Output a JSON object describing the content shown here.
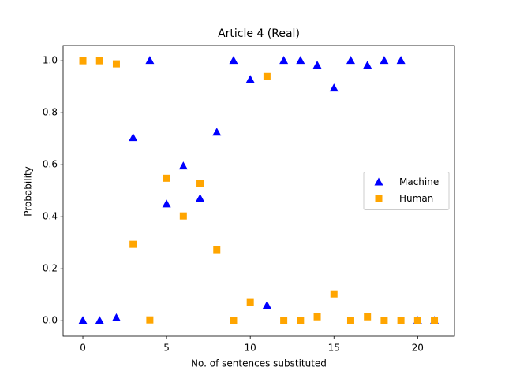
{
  "chart_data": {
    "type": "scatter",
    "title": "Article 4 (Real)",
    "xlabel": "No. of sentences substituted",
    "ylabel": "Probability",
    "x": [
      0,
      1,
      2,
      3,
      4,
      5,
      6,
      7,
      8,
      9,
      10,
      11,
      12,
      13,
      14,
      15,
      16,
      17,
      18,
      19,
      20,
      21
    ],
    "series": [
      {
        "name": "Machine",
        "color": "#0000ff",
        "marker": "triangle",
        "values": [
          0.0,
          0.0,
          0.01,
          0.703,
          1.0,
          0.448,
          0.594,
          0.47,
          0.724,
          1.0,
          0.927,
          0.058,
          1.0,
          1.0,
          0.982,
          0.894,
          1.0,
          0.982,
          1.0,
          1.0,
          0.0,
          0.0
        ]
      },
      {
        "name": "Human",
        "color": "#ffa500",
        "marker": "square",
        "values": [
          1.0,
          1.0,
          0.988,
          0.294,
          0.003,
          0.548,
          0.403,
          0.527,
          0.273,
          0.0,
          0.07,
          0.939,
          0.0,
          0.0,
          0.015,
          0.103,
          0.0,
          0.015,
          0.0,
          0.0,
          0.0,
          0.0
        ]
      }
    ],
    "xlim": [
      -1.18,
      22.2
    ],
    "xticks": [
      0,
      5,
      10,
      15,
      20
    ],
    "ylim": [
      -0.06,
      1.058
    ],
    "yticks": [
      {
        "value": 0,
        "label": "0.0"
      },
      0.2,
      0.4,
      0.6,
      0.8,
      {
        "value": 1,
        "label": "1.0"
      }
    ],
    "legend": "center right"
  }
}
